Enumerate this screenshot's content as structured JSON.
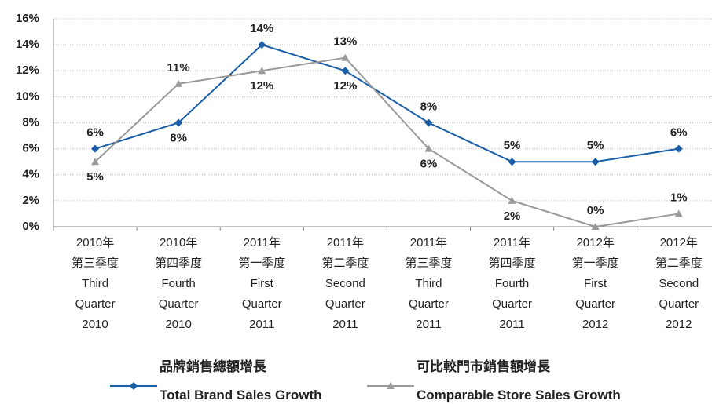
{
  "chart_data": {
    "type": "line",
    "categories": [
      "2010年\n第三季度\nThird\nQuarter\n2010",
      "2010年\n第四季度\nFourth\nQuarter\n2010",
      "2011年\n第一季度\nFirst\nQuarter\n2011",
      "2011年\n第二季度\nSecond\nQuarter\n2011",
      "2011年\n第三季度\nThird\nQuarter\n2011",
      "2011年\n第四季度\nFourth\nQuarter\n2011",
      "2012年\n第一季度\nFirst\nQuarter\n2012",
      "2012年\n第二季度\nSecond\nQuarter\n2012"
    ],
    "series": [
      {
        "name": "品牌銷售總額增長\nTotal Brand Sales Growth",
        "color": "#1a5ea8",
        "marker": "diamond",
        "values": [
          6,
          8,
          14,
          12,
          8,
          5,
          5,
          6
        ],
        "value_labels": [
          "6%",
          "8%",
          "14%",
          "12%",
          "8%",
          "5%",
          "5%",
          "6%"
        ]
      },
      {
        "name": "可比較門市銷售額增長\nComparable Store Sales Growth",
        "color": "#999999",
        "marker": "triangle",
        "values": [
          5,
          11,
          12,
          13,
          6,
          2,
          0,
          1
        ],
        "value_labels": [
          "5%",
          "11%",
          "12%",
          "13%",
          "6%",
          "2%",
          "0%",
          "1%"
        ]
      }
    ],
    "ylim": [
      0,
      16
    ],
    "yticks": [
      {
        "value": 0,
        "label": "0%"
      },
      {
        "value": 2,
        "label": "2%"
      },
      {
        "value": 4,
        "label": "4%"
      },
      {
        "value": 6,
        "label": "6%"
      },
      {
        "value": 8,
        "label": "8%"
      },
      {
        "value": 10,
        "label": "10%"
      },
      {
        "value": 12,
        "label": "12%"
      },
      {
        "value": 14,
        "label": "14%"
      },
      {
        "value": 16,
        "label": "16%"
      }
    ],
    "grid": true
  }
}
